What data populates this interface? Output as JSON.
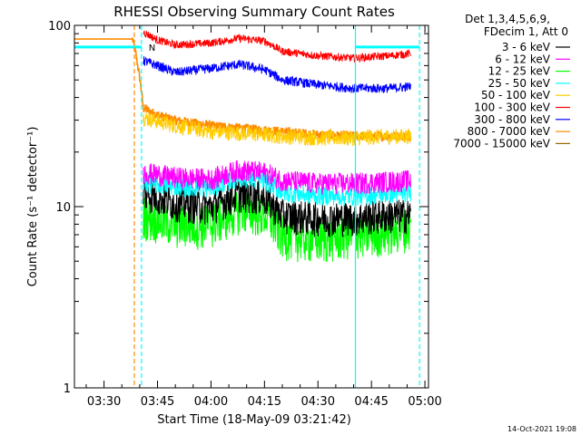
{
  "chart_data": {
    "type": "line",
    "title": "RHESSI Observing Summary Count Rates",
    "xlabel": "Start Time (18-May-09 03:21:42)",
    "ylabel": "Count Rate (s⁻¹ detector⁻¹)",
    "y_scale": "log",
    "ylim": [
      1,
      100
    ],
    "xlim": [
      "03:21:42",
      "05:01:00"
    ],
    "x_ticks": [
      "03:30",
      "03:45",
      "04:00",
      "04:15",
      "04:30",
      "04:45",
      "05:00"
    ],
    "y_ticks": [
      "1",
      "10",
      "100"
    ],
    "legend": {
      "placement": "top-right",
      "header": [
        "Det 1,3,4,5,6,9,",
        "FDecim 1, Att 0"
      ]
    },
    "series": [
      {
        "name": "3 - 6 keV",
        "color": "#000000",
        "x": [
          "03:41:00",
          "03:50:00",
          "04:00:00",
          "04:08:00",
          "04:15:00",
          "04:20:00",
          "04:30:00",
          "04:40:00",
          "04:50:00",
          "04:56:00"
        ],
        "values": [
          12,
          10.5,
          10,
          11.8,
          11.3,
          9,
          8.7,
          8.7,
          9,
          9
        ]
      },
      {
        "name": "6 - 12 keV",
        "color": "#ff00ff",
        "x": [
          "03:41:00",
          "03:50:00",
          "04:00:00",
          "04:08:00",
          "04:15:00",
          "04:20:00",
          "04:30:00",
          "04:40:00",
          "04:50:00",
          "04:56:00"
        ],
        "values": [
          15.5,
          14.5,
          14.2,
          16,
          15.5,
          14,
          13.5,
          13.5,
          13.8,
          14
        ]
      },
      {
        "name": "12 - 25 keV",
        "color": "#00ff00",
        "x": [
          "03:41:00",
          "03:50:00",
          "04:00:00",
          "04:08:00",
          "04:15:00",
          "04:20:00",
          "04:30:00",
          "04:40:00",
          "04:50:00",
          "04:56:00"
        ],
        "values": [
          9,
          8,
          8,
          9.7,
          9.2,
          7,
          6.6,
          7,
          7.3,
          7.8
        ]
      },
      {
        "name": "25 - 50 keV",
        "color": "#00ffff",
        "x": [
          "03:41:00",
          "03:50:00",
          "04:00:00",
          "04:08:00",
          "04:15:00",
          "04:20:00",
          "04:30:00",
          "04:40:00",
          "04:50:00",
          "04:56:00"
        ],
        "values": [
          13.5,
          13,
          12.7,
          14.5,
          14,
          12,
          11.5,
          11.4,
          11.8,
          12
        ]
      },
      {
        "name": "50 - 100 keV",
        "color": "#ffcc00",
        "x": [
          "03:41:00",
          "03:50:00",
          "04:00:00",
          "04:08:00",
          "04:15:00",
          "04:20:00",
          "04:30:00",
          "04:40:00",
          "04:50:00",
          "04:56:00"
        ],
        "values": [
          31,
          28,
          26,
          25.5,
          25,
          24.5,
          24,
          24,
          24.5,
          24.5
        ]
      },
      {
        "name": "100 - 300 keV",
        "color": "#ff0000",
        "x": [
          "03:41:00",
          "03:45:00",
          "03:50:00",
          "04:00:00",
          "04:08:00",
          "04:15:00",
          "04:20:00",
          "04:30:00",
          "04:40:00",
          "04:50:00",
          "04:56:00"
        ],
        "values": [
          92,
          83,
          78,
          80,
          85,
          82,
          72,
          68,
          66,
          68,
          70
        ]
      },
      {
        "name": "300 - 800 keV",
        "color": "#0000ff",
        "x": [
          "03:41:00",
          "03:45:00",
          "03:50:00",
          "04:00:00",
          "04:08:00",
          "04:15:00",
          "04:20:00",
          "04:30:00",
          "04:40:00",
          "04:50:00",
          "04:56:00"
        ],
        "values": [
          64,
          60,
          55,
          58,
          61,
          57,
          50,
          47,
          45,
          45,
          46
        ]
      },
      {
        "name": "800 - 7000 keV",
        "color": "#ff8c00",
        "x": [
          "03:21:42",
          "03:38:00",
          "03:41:00",
          "03:45:00",
          "03:50:00",
          "04:00:00",
          "04:10:00",
          "04:20:00",
          "04:30:00",
          "04:40:00",
          "04:50:00",
          "04:56:00"
        ],
        "values": [
          84,
          84,
          35,
          32,
          30,
          28,
          27,
          26,
          25,
          24.5,
          24.5,
          24.5
        ]
      },
      {
        "name": "7000 - 15000 keV",
        "color": "#996600",
        "x": [],
        "values": []
      }
    ],
    "background_level": {
      "color": "#00ffff",
      "value": 76,
      "segments": [
        [
          "03:21:42",
          "03:40:30"
        ],
        [
          "04:40:30",
          "04:58:30"
        ]
      ]
    },
    "annotations": [
      {
        "text": "N",
        "x": "03:42:30",
        "value": 76,
        "color": "#00ffff"
      }
    ],
    "vertical_markers": [
      {
        "x": "03:38:30",
        "color": "#ff8c00",
        "style": "dashed"
      },
      {
        "x": "03:40:30",
        "color": "#00ffff",
        "style": "dashed"
      },
      {
        "x": "04:40:30",
        "color": "#00ffff",
        "style": "solid"
      },
      {
        "x": "04:58:30",
        "color": "#00ffff",
        "style": "dashed"
      }
    ],
    "footer_timestamp": "14-Oct-2021 19:08"
  }
}
